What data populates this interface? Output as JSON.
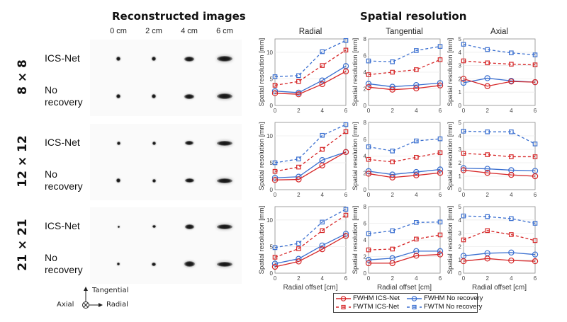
{
  "left_panel": {
    "title": "Reconstructed images",
    "offsets": [
      "0 cm",
      "2 cm",
      "4 cm",
      "6 cm"
    ],
    "groups": [
      {
        "label": "8 × 8",
        "rows": [
          "ICS-Net",
          "No\nrecovery"
        ]
      },
      {
        "label": "12 × 12",
        "rows": [
          "ICS-Net",
          "No\nrecovery"
        ]
      },
      {
        "label": "21 × 21",
        "rows": [
          "ICS-Net",
          "No\nrecovery"
        ]
      }
    ],
    "orientation": {
      "up": "Tangential",
      "center": "Axial",
      "right": "Radial"
    }
  },
  "right_panel": {
    "title": "Spatial resolution"
  },
  "chart_data": {
    "type": "line",
    "title": "Spatial resolution",
    "xlabel": "Radial offset [cm]",
    "ylabel": "Spatial resolution [mm]",
    "x": [
      0,
      2,
      4,
      6
    ],
    "xticks": [
      "0",
      "2",
      "4",
      "6"
    ],
    "legend": {
      "placement": "bottom-center",
      "entries": [
        "FWHM ICS-Net",
        "FWHM No recovery",
        "FWTM ICS-Net",
        "FWTM No recovery"
      ]
    },
    "series_styles": [
      {
        "name": "FWHM ICS-Net",
        "color": "#d62728",
        "dash": "solid",
        "marker": "circle"
      },
      {
        "name": "FWHM No recovery",
        "color": "#3a6fd0",
        "dash": "solid",
        "marker": "circle"
      },
      {
        "name": "FWTM ICS-Net",
        "color": "#d62728",
        "dash": "dashed",
        "marker": "square"
      },
      {
        "name": "FWTM No recovery",
        "color": "#3a6fd0",
        "dash": "dashed",
        "marker": "square"
      }
    ],
    "columns": [
      {
        "title": "Radial",
        "ylim": [
          0,
          12.5
        ],
        "yticks": [
          "0",
          "5",
          "10"
        ],
        "ytick_values": [
          0,
          5,
          10
        ]
      },
      {
        "title": "Tangential",
        "ylim": [
          0,
          8
        ],
        "yticks": [
          "0",
          "2",
          "4",
          "6",
          "8"
        ],
        "ytick_values": [
          0,
          2,
          4,
          6,
          8
        ]
      },
      {
        "title": "Axial",
        "ylim": [
          0,
          5
        ],
        "yticks": [
          "0",
          "1",
          "2",
          "3",
          "4",
          "5"
        ],
        "ytick_values": [
          0,
          1,
          2,
          3,
          4,
          5
        ]
      }
    ],
    "panels": [
      {
        "row": "8 × 8",
        "column": "Radial",
        "series": [
          {
            "name": "FWHM ICS-Net",
            "values": [
              2.3,
              2.1,
              4.0,
              6.4
            ]
          },
          {
            "name": "FWHM No recovery",
            "values": [
              2.7,
              2.4,
              4.7,
              7.4
            ]
          },
          {
            "name": "FWTM ICS-Net",
            "values": [
              3.8,
              4.5,
              7.5,
              10.4
            ]
          },
          {
            "name": "FWTM No recovery",
            "values": [
              5.4,
              5.6,
              10.1,
              12.2
            ]
          }
        ]
      },
      {
        "row": "8 × 8",
        "column": "Tangential",
        "series": [
          {
            "name": "FWHM ICS-Net",
            "values": [
              2.2,
              1.9,
              2.05,
              2.4
            ]
          },
          {
            "name": "FWHM No recovery",
            "values": [
              2.6,
              2.25,
              2.45,
              2.7
            ]
          },
          {
            "name": "FWTM ICS-Net",
            "values": [
              3.7,
              4.0,
              4.3,
              5.5
            ]
          },
          {
            "name": "FWTM No recovery",
            "values": [
              5.35,
              5.25,
              6.6,
              7.1
            ]
          }
        ]
      },
      {
        "row": "8 × 8",
        "column": "Axial",
        "series": [
          {
            "name": "FWHM ICS-Net",
            "values": [
              2.0,
              1.45,
              1.8,
              1.75
            ]
          },
          {
            "name": "FWHM No recovery",
            "values": [
              1.7,
              2.05,
              1.85,
              1.75
            ]
          },
          {
            "name": "FWTM ICS-Net",
            "values": [
              3.35,
              3.2,
              3.1,
              3.05
            ]
          },
          {
            "name": "FWTM No recovery",
            "values": [
              4.6,
              4.2,
              3.95,
              3.8
            ]
          }
        ]
      },
      {
        "row": "12 × 12",
        "column": "Radial",
        "series": [
          {
            "name": "FWHM ICS-Net",
            "values": [
              1.8,
              1.9,
              4.5,
              7.0
            ]
          },
          {
            "name": "FWHM No recovery",
            "values": [
              2.2,
              2.4,
              5.5,
              7.0
            ]
          },
          {
            "name": "FWTM ICS-Net",
            "values": [
              3.4,
              4.2,
              7.5,
              10.8
            ]
          },
          {
            "name": "FWTM No recovery",
            "values": [
              5.0,
              5.7,
              10.1,
              12.1
            ]
          }
        ]
      },
      {
        "row": "12 × 12",
        "column": "Tangential",
        "series": [
          {
            "name": "FWHM ICS-Net",
            "values": [
              1.9,
              1.45,
              1.7,
              2.0
            ]
          },
          {
            "name": "FWHM No recovery",
            "values": [
              2.2,
              1.8,
              2.1,
              2.4
            ]
          },
          {
            "name": "FWTM ICS-Net",
            "values": [
              3.6,
              3.3,
              3.85,
              4.4
            ]
          },
          {
            "name": "FWTM No recovery",
            "values": [
              5.1,
              4.6,
              5.8,
              6.05
            ]
          }
        ]
      },
      {
        "row": "12 × 12",
        "column": "Axial",
        "series": [
          {
            "name": "FWHM ICS-Net",
            "values": [
              1.45,
              1.25,
              1.1,
              1.0
            ]
          },
          {
            "name": "FWHM No recovery",
            "values": [
              1.6,
              1.55,
              1.45,
              1.4
            ]
          },
          {
            "name": "FWTM ICS-Net",
            "values": [
              2.7,
              2.6,
              2.45,
              2.45
            ]
          },
          {
            "name": "FWTM No recovery",
            "values": [
              4.35,
              4.3,
              4.3,
              3.4
            ]
          }
        ]
      },
      {
        "row": "21 × 21",
        "column": "Radial",
        "series": [
          {
            "name": "FWHM ICS-Net",
            "values": [
              1.2,
              2.2,
              4.5,
              7.0
            ]
          },
          {
            "name": "FWHM No recovery",
            "values": [
              1.8,
              2.7,
              5.2,
              7.4
            ]
          },
          {
            "name": "FWTM ICS-Net",
            "values": [
              3.0,
              4.6,
              8.0,
              10.9
            ]
          },
          {
            "name": "FWTM No recovery",
            "values": [
              4.8,
              5.6,
              9.6,
              12.0
            ]
          }
        ]
      },
      {
        "row": "21 × 21",
        "column": "Tangential",
        "series": [
          {
            "name": "FWHM ICS-Net",
            "values": [
              1.2,
              1.2,
              2.1,
              2.25
            ]
          },
          {
            "name": "FWHM No recovery",
            "values": [
              1.6,
              1.8,
              2.65,
              2.65
            ]
          },
          {
            "name": "FWTM ICS-Net",
            "values": [
              2.8,
              2.9,
              4.1,
              4.6
            ]
          },
          {
            "name": "FWTM No recovery",
            "values": [
              4.75,
              5.1,
              6.1,
              6.15
            ]
          }
        ]
      },
      {
        "row": "21 × 21",
        "column": "Axial",
        "series": [
          {
            "name": "FWHM ICS-Net",
            "values": [
              0.9,
              1.1,
              0.95,
              0.9
            ]
          },
          {
            "name": "FWHM No recovery",
            "values": [
              1.3,
              1.5,
              1.55,
              1.4
            ]
          },
          {
            "name": "FWTM ICS-Net",
            "values": [
              2.5,
              3.2,
              2.9,
              2.45
            ]
          },
          {
            "name": "FWTM No recovery",
            "values": [
              4.3,
              4.25,
              4.1,
              3.75
            ]
          }
        ]
      }
    ]
  }
}
